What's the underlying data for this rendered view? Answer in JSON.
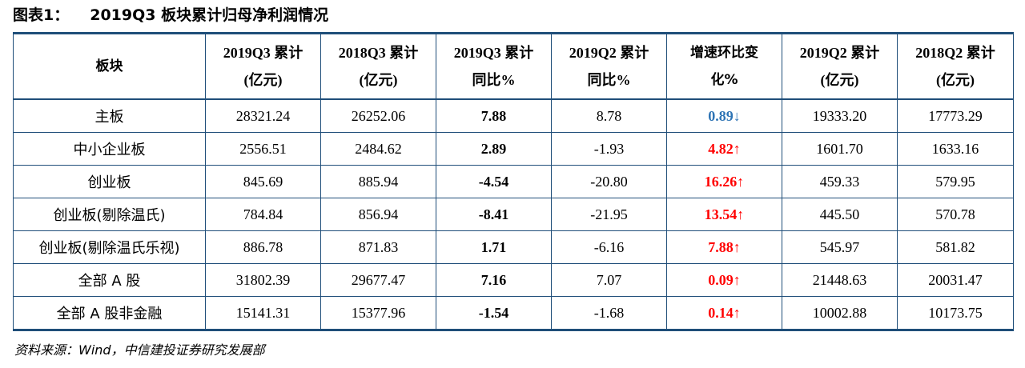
{
  "title": {
    "label": "图表1：",
    "text": "2019Q3 板块累计归母净利润情况"
  },
  "table": {
    "headers": [
      {
        "line1": "板块",
        "line2": ""
      },
      {
        "line1": "2019Q3 累计",
        "line2": "(亿元)"
      },
      {
        "line1": "2018Q3 累计",
        "line2": "(亿元)"
      },
      {
        "line1": "2019Q3 累计",
        "line2": "同比%"
      },
      {
        "line1": "2019Q2 累计",
        "line2": "同比%"
      },
      {
        "line1": "增速环比变",
        "line2": "化%"
      },
      {
        "line1": "2019Q2 累计",
        "line2": "(亿元)"
      },
      {
        "line1": "2018Q2 累计",
        "line2": "(亿元)"
      }
    ],
    "rows": [
      {
        "name": "主板",
        "q3_2019": "28321.24",
        "q3_2018": "26252.06",
        "yoy_q3": "7.88",
        "yoy_q2": "8.78",
        "change": "0.89↓",
        "change_dir": "down",
        "q2_2019": "19333.20",
        "q2_2018": "17773.29"
      },
      {
        "name": "中小企业板",
        "q3_2019": "2556.51",
        "q3_2018": "2484.62",
        "yoy_q3": "2.89",
        "yoy_q2": "-1.93",
        "change": "4.82↑",
        "change_dir": "up",
        "q2_2019": "1601.70",
        "q2_2018": "1633.16"
      },
      {
        "name": "创业板",
        "q3_2019": "845.69",
        "q3_2018": "885.94",
        "yoy_q3": "-4.54",
        "yoy_q2": "-20.80",
        "change": "16.26↑",
        "change_dir": "up",
        "q2_2019": "459.33",
        "q2_2018": "579.95"
      },
      {
        "name": "创业板(剔除温氏)",
        "q3_2019": "784.84",
        "q3_2018": "856.94",
        "yoy_q3": "-8.41",
        "yoy_q2": "-21.95",
        "change": "13.54↑",
        "change_dir": "up",
        "q2_2019": "445.50",
        "q2_2018": "570.78"
      },
      {
        "name": "创业板(剔除温氏乐视)",
        "q3_2019": "886.78",
        "q3_2018": "871.83",
        "yoy_q3": "1.71",
        "yoy_q2": "-6.16",
        "change": "7.88↑",
        "change_dir": "up",
        "q2_2019": "545.97",
        "q2_2018": "581.82"
      },
      {
        "name": "全部 A 股",
        "q3_2019": "31802.39",
        "q3_2018": "29677.47",
        "yoy_q3": "7.16",
        "yoy_q2": "7.07",
        "change": "0.09↑",
        "change_dir": "up",
        "q2_2019": "21448.63",
        "q2_2018": "20031.47"
      },
      {
        "name": "全部 A 股非金融",
        "q3_2019": "15141.31",
        "q3_2018": "15377.96",
        "yoy_q3": "-1.54",
        "yoy_q2": "-1.68",
        "change": "0.14↑",
        "change_dir": "up",
        "q2_2019": "10002.88",
        "q2_2018": "10173.75"
      }
    ]
  },
  "source": "资料来源：Wind，中信建投证券研究发展部",
  "colors": {
    "border": "#1f4e79",
    "down": "#2e74b5",
    "up": "#ff0000"
  }
}
